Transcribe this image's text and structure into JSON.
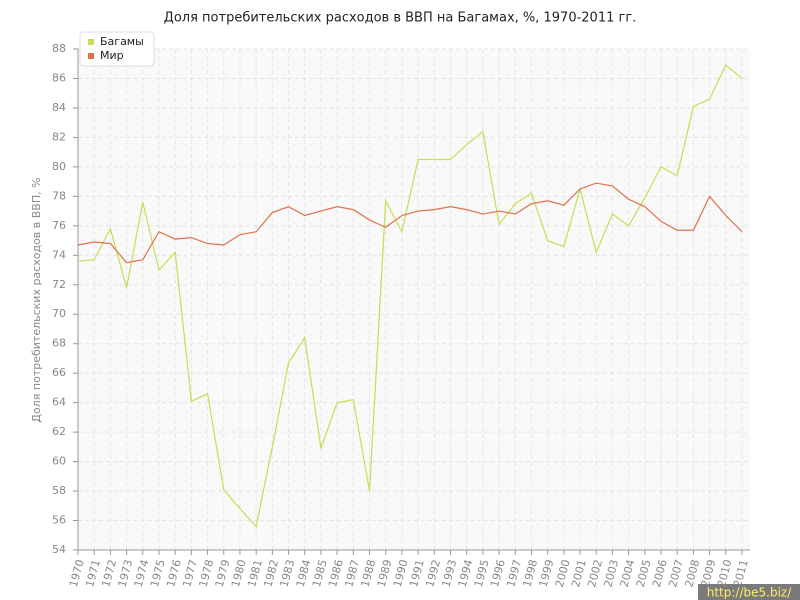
{
  "chart_data": {
    "type": "line",
    "title": "Доля потребительских расходов в ВВП на Багамах, %, 1970-2011 гг.",
    "y_label": "Доля потребительских расходов в ВВП, %",
    "watermark": "http://be5.biz/",
    "categories": [
      "1970",
      "1971",
      "1972",
      "1973",
      "1974",
      "1975",
      "1976",
      "1977",
      "1978",
      "1979",
      "1980",
      "1981",
      "1982",
      "1983",
      "1984",
      "1985",
      "1986",
      "1987",
      "1988",
      "1989",
      "1990",
      "1991",
      "1992",
      "1993",
      "1994",
      "1995",
      "1996",
      "1997",
      "1998",
      "1999",
      "2000",
      "2001",
      "2002",
      "2003",
      "2004",
      "2005",
      "2006",
      "2007",
      "2008",
      "2009",
      "2010",
      "2011"
    ],
    "series": [
      {
        "name": "Багамы",
        "color": "#c3df52",
        "values": [
          73.6,
          73.7,
          75.8,
          71.8,
          77.6,
          73.0,
          74.2,
          64.1,
          64.6,
          58.1,
          56.8,
          55.6,
          61.0,
          66.7,
          68.4,
          60.9,
          64.0,
          64.2,
          58.0,
          77.7,
          75.6,
          80.5,
          80.5,
          80.5,
          81.5,
          82.4,
          76.1,
          77.5,
          78.2,
          75.0,
          74.6,
          78.5,
          74.2,
          76.8,
          76.0,
          77.9,
          80.0,
          79.4,
          84.1,
          84.6,
          86.9,
          86.0
        ]
      },
      {
        "name": "Мир",
        "color": "#e0704a",
        "values": [
          74.7,
          74.9,
          74.8,
          73.5,
          73.7,
          75.6,
          75.1,
          75.2,
          74.8,
          74.7,
          75.4,
          75.6,
          76.9,
          77.3,
          76.7,
          77.0,
          77.3,
          77.1,
          76.4,
          75.9,
          76.7,
          77.0,
          77.1,
          77.3,
          77.1,
          76.8,
          77.0,
          76.8,
          77.5,
          77.7,
          77.4,
          78.5,
          78.9,
          78.7,
          77.8,
          77.3,
          76.3,
          75.7,
          75.7,
          78.0,
          76.7,
          75.6
        ]
      }
    ],
    "ylim": [
      54,
      88
    ],
    "yticks": [
      54,
      56,
      58,
      60,
      62,
      64,
      66,
      68,
      70,
      72,
      74,
      76,
      78,
      80,
      82,
      84,
      86,
      88
    ],
    "grid": true,
    "legend": "upper-left"
  }
}
